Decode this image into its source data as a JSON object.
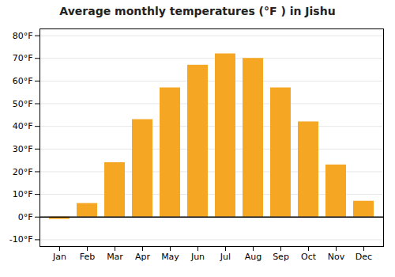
{
  "chart_data": {
    "type": "bar",
    "title": "Average monthly temperatures (°F ) in Jishu",
    "categories": [
      "Jan",
      "Feb",
      "Mar",
      "Apr",
      "May",
      "Jun",
      "Jul",
      "Aug",
      "Sep",
      "Oct",
      "Nov",
      "Dec"
    ],
    "values": [
      -1,
      6,
      24,
      43,
      57,
      67,
      72,
      70,
      57,
      42,
      23,
      7
    ],
    "color": "#F5A623",
    "ylim": [
      -13,
      83
    ],
    "yticks": [
      {
        "value": -10,
        "label": "-10°F"
      },
      {
        "value": 0,
        "label": "0°F"
      },
      {
        "value": 10,
        "label": "10°F"
      },
      {
        "value": 20,
        "label": "20°F"
      },
      {
        "value": 30,
        "label": "30°F"
      },
      {
        "value": 40,
        "label": "40°F"
      },
      {
        "value": 50,
        "label": "50°F"
      },
      {
        "value": 60,
        "label": "60°F"
      },
      {
        "value": 70,
        "label": "70°F"
      },
      {
        "value": 80,
        "label": "80°F"
      }
    ],
    "grid": true
  }
}
